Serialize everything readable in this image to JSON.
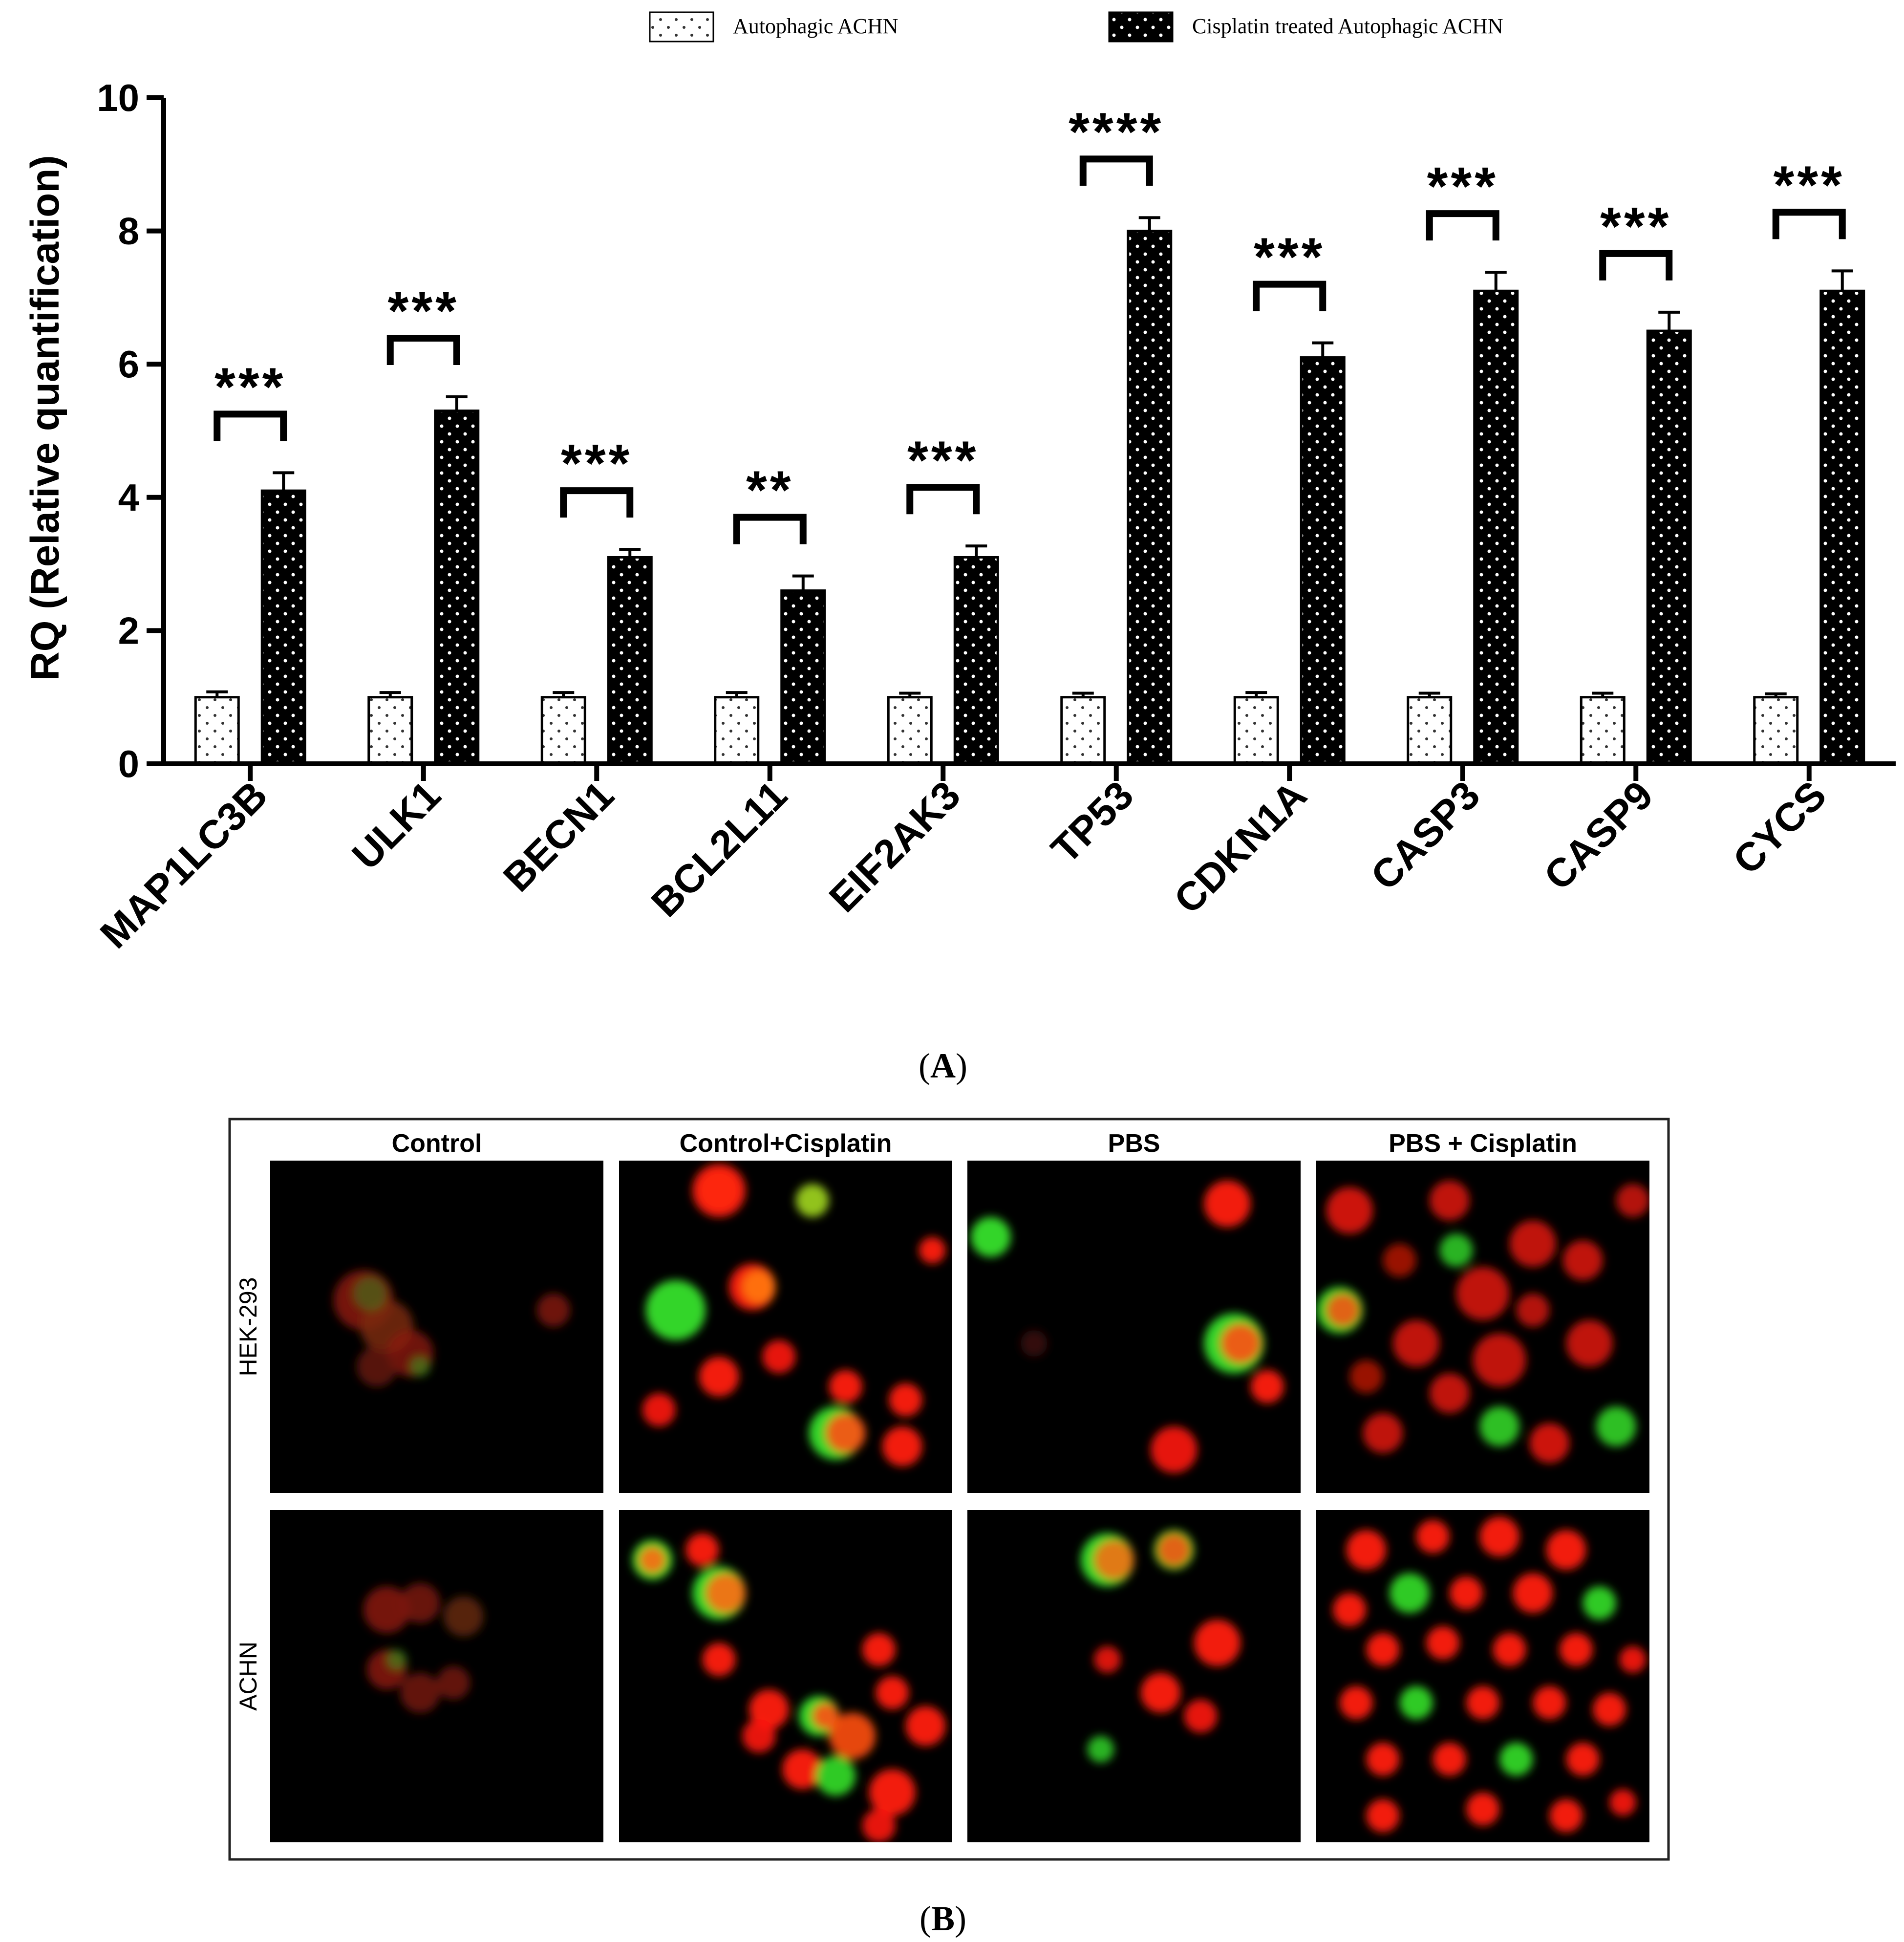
{
  "panel_a_caption_letter": "A",
  "panel_b_caption_letter": "B",
  "chart_data": {
    "type": "bar",
    "title": "",
    "xlabel": "",
    "ylabel": "RQ (Relative quantification)",
    "ylim": [
      0,
      10
    ],
    "yticks": [
      0,
      2,
      4,
      6,
      8,
      10
    ],
    "grid": false,
    "legend_position": "top",
    "categories": [
      "MAP1LC3B",
      "ULK1",
      "BECN1",
      "BCL2L11",
      "EIF2AK3",
      "TP53",
      "CDKN1A",
      "CASP3",
      "CASP9",
      "CYCS"
    ],
    "series": [
      {
        "name": "Autophagic ACHN",
        "values": [
          1.0,
          1.0,
          1.0,
          1.0,
          1.0,
          1.0,
          1.0,
          1.0,
          1.0,
          1.0
        ],
        "errors": [
          0.08,
          0.07,
          0.07,
          0.07,
          0.06,
          0.06,
          0.07,
          0.06,
          0.06,
          0.05
        ]
      },
      {
        "name": "Cisplatin treated Autophagic ACHN",
        "values": [
          4.1,
          5.3,
          3.1,
          2.6,
          3.1,
          8.0,
          6.1,
          7.1,
          6.5,
          7.1
        ],
        "errors": [
          0.27,
          0.21,
          0.12,
          0.22,
          0.17,
          0.2,
          0.22,
          0.28,
          0.28,
          0.3
        ]
      }
    ],
    "significance": [
      "***",
      "***",
      "***",
      "**",
      "***",
      "****",
      "***",
      "***",
      "***",
      "***"
    ]
  },
  "micrograph_panel": {
    "columns": [
      "Control",
      "Control+Cisplatin",
      "PBS",
      "PBS + Cisplatin"
    ],
    "rows": [
      "HEK-293",
      "ACHN"
    ],
    "colors": {
      "red": "#ff1a0a",
      "green": "#35e02a",
      "background": "#000000"
    },
    "cells": [
      [
        [
          [
            0.28,
            0.42,
            0.09,
            "#8a1810",
            0.85
          ],
          [
            0.35,
            0.5,
            0.08,
            "#7a2a10",
            0.85
          ],
          [
            0.42,
            0.58,
            0.07,
            "#8a1810",
            0.8
          ],
          [
            0.32,
            0.62,
            0.06,
            "#6a1a10",
            0.8
          ],
          [
            0.85,
            0.45,
            0.05,
            "#8a1810",
            0.8
          ],
          [
            0.3,
            0.4,
            0.05,
            "#3a8a20",
            0.5
          ],
          [
            0.45,
            0.62,
            0.03,
            "#3a9a20",
            0.6
          ]
        ],
        [
          [
            0.3,
            0.09,
            0.08,
            "#ff1a0a",
            0.95
          ],
          [
            0.3,
            0.09,
            0.06,
            "#ff2a10",
            0.85
          ],
          [
            0.58,
            0.12,
            0.05,
            "#9acd20",
            0.95
          ],
          [
            0.17,
            0.45,
            0.09,
            "#35e02a",
            0.95
          ],
          [
            0.4,
            0.38,
            0.07,
            "#ff1a0a",
            0.95
          ],
          [
            0.42,
            0.38,
            0.05,
            "#ff7a10",
            0.9
          ],
          [
            0.3,
            0.65,
            0.06,
            "#ff1a0a",
            0.95
          ],
          [
            0.48,
            0.59,
            0.05,
            "#ff1a0a",
            0.9
          ],
          [
            0.68,
            0.68,
            0.05,
            "#ff1a0a",
            0.95
          ],
          [
            0.86,
            0.72,
            0.05,
            "#ff1a0a",
            0.95
          ],
          [
            0.65,
            0.82,
            0.08,
            "#35e02a",
            0.95
          ],
          [
            0.68,
            0.82,
            0.06,
            "#ff5010",
            0.9
          ],
          [
            0.85,
            0.86,
            0.06,
            "#ff1a0a",
            0.95
          ],
          [
            0.94,
            0.27,
            0.04,
            "#ff1a0a",
            0.95
          ],
          [
            0.12,
            0.75,
            0.05,
            "#ff1a0a",
            0.9
          ]
        ],
        [
          [
            0.07,
            0.23,
            0.06,
            "#35e02a",
            0.95
          ],
          [
            0.78,
            0.13,
            0.07,
            "#ff1a0a",
            0.95
          ],
          [
            0.8,
            0.55,
            0.09,
            "#35e02a",
            0.95
          ],
          [
            0.82,
            0.55,
            0.06,
            "#ff5010",
            0.9
          ],
          [
            0.9,
            0.68,
            0.05,
            "#ff1a0a",
            0.95
          ],
          [
            0.62,
            0.87,
            0.07,
            "#ff1a0a",
            0.9
          ],
          [
            0.2,
            0.55,
            0.04,
            "#4a1010",
            0.7
          ]
        ],
        [
          [
            0.1,
            0.15,
            0.07,
            "#ff1a0a",
            0.8
          ],
          [
            0.4,
            0.12,
            0.06,
            "#ff1a0a",
            0.75
          ],
          [
            0.65,
            0.25,
            0.07,
            "#ff1a0a",
            0.75
          ],
          [
            0.5,
            0.4,
            0.08,
            "#ff1a0a",
            0.75
          ],
          [
            0.07,
            0.45,
            0.07,
            "#35e02a",
            0.9
          ],
          [
            0.08,
            0.45,
            0.05,
            "#ff5010",
            0.85
          ],
          [
            0.3,
            0.55,
            0.07,
            "#ff1a0a",
            0.75
          ],
          [
            0.55,
            0.6,
            0.08,
            "#ff1a0a",
            0.75
          ],
          [
            0.82,
            0.55,
            0.07,
            "#ff1a0a",
            0.75
          ],
          [
            0.2,
            0.82,
            0.06,
            "#ff1a0a",
            0.75
          ],
          [
            0.55,
            0.8,
            0.06,
            "#35e02a",
            0.85
          ],
          [
            0.9,
            0.8,
            0.06,
            "#35e02a",
            0.85
          ],
          [
            0.7,
            0.85,
            0.06,
            "#ff1a0a",
            0.8
          ],
          [
            0.4,
            0.7,
            0.06,
            "#ff1a0a",
            0.75
          ],
          [
            0.8,
            0.3,
            0.06,
            "#ff1a0a",
            0.75
          ],
          [
            0.42,
            0.27,
            0.05,
            "#35e02a",
            0.8
          ],
          [
            0.95,
            0.12,
            0.05,
            "#ff1a0a",
            0.7
          ],
          [
            0.25,
            0.3,
            0.05,
            "#ff1a0a",
            0.6
          ],
          [
            0.65,
            0.45,
            0.05,
            "#ff1a0a",
            0.7
          ],
          [
            0.15,
            0.65,
            0.05,
            "#ff1a0a",
            0.6
          ]
        ]
      ],
      [
        [
          [
            0.35,
            0.3,
            0.07,
            "#8a1810",
            0.85
          ],
          [
            0.45,
            0.28,
            0.06,
            "#7a1810",
            0.85
          ],
          [
            0.58,
            0.32,
            0.06,
            "#6a2a10",
            0.8
          ],
          [
            0.35,
            0.48,
            0.06,
            "#8a1810",
            0.85
          ],
          [
            0.45,
            0.55,
            0.06,
            "#7a1810",
            0.8
          ],
          [
            0.55,
            0.52,
            0.05,
            "#7a1810",
            0.8
          ],
          [
            0.38,
            0.45,
            0.03,
            "#3a9a20",
            0.6
          ]
        ],
        [
          [
            0.1,
            0.15,
            0.06,
            "#35e02a",
            0.95
          ],
          [
            0.1,
            0.15,
            0.04,
            "#ff6a10",
            0.9
          ],
          [
            0.25,
            0.12,
            0.05,
            "#ff1a0a",
            0.95
          ],
          [
            0.3,
            0.25,
            0.08,
            "#35e02a",
            0.95
          ],
          [
            0.32,
            0.25,
            0.06,
            "#ff6a10",
            0.9
          ],
          [
            0.3,
            0.45,
            0.05,
            "#ff1a0a",
            0.95
          ],
          [
            0.45,
            0.6,
            0.06,
            "#ff1a0a",
            0.95
          ],
          [
            0.6,
            0.62,
            0.06,
            "#35e02a",
            0.95
          ],
          [
            0.62,
            0.62,
            0.04,
            "#ff5010",
            0.9
          ],
          [
            0.7,
            0.68,
            0.07,
            "#ff5010",
            0.9
          ],
          [
            0.82,
            0.55,
            0.05,
            "#ff1a0a",
            0.95
          ],
          [
            0.92,
            0.65,
            0.06,
            "#ff1a0a",
            0.95
          ],
          [
            0.55,
            0.78,
            0.06,
            "#ff1a0a",
            0.95
          ],
          [
            0.65,
            0.8,
            0.06,
            "#35e02a",
            0.9
          ],
          [
            0.82,
            0.85,
            0.07,
            "#ff1a0a",
            0.95
          ],
          [
            0.78,
            0.42,
            0.05,
            "#ff1a0a",
            0.95
          ],
          [
            0.78,
            0.95,
            0.05,
            "#ff1a0a",
            0.9
          ],
          [
            0.42,
            0.68,
            0.05,
            "#ff1a0a",
            0.9
          ]
        ],
        [
          [
            0.42,
            0.15,
            0.08,
            "#35e02a",
            0.95
          ],
          [
            0.44,
            0.15,
            0.06,
            "#ff6a10",
            0.85
          ],
          [
            0.62,
            0.12,
            0.06,
            "#35e02a",
            0.9
          ],
          [
            0.62,
            0.12,
            0.05,
            "#ff5010",
            0.85
          ],
          [
            0.75,
            0.4,
            0.07,
            "#ff1a0a",
            0.95
          ],
          [
            0.58,
            0.55,
            0.06,
            "#ff1a0a",
            0.95
          ],
          [
            0.7,
            0.62,
            0.05,
            "#ff1a0a",
            0.9
          ],
          [
            0.42,
            0.45,
            0.04,
            "#ff1a0a",
            0.85
          ],
          [
            0.4,
            0.72,
            0.04,
            "#35e02a",
            0.8
          ]
        ],
        [
          [
            0.15,
            0.12,
            0.06,
            "#ff1a0a",
            0.95
          ],
          [
            0.35,
            0.08,
            0.05,
            "#ff1a0a",
            0.95
          ],
          [
            0.55,
            0.08,
            0.06,
            "#ff1a0a",
            0.95
          ],
          [
            0.75,
            0.12,
            0.06,
            "#ff1a0a",
            0.95
          ],
          [
            0.1,
            0.3,
            0.05,
            "#ff1a0a",
            0.95
          ],
          [
            0.28,
            0.25,
            0.06,
            "#35e02a",
            0.9
          ],
          [
            0.45,
            0.25,
            0.05,
            "#ff1a0a",
            0.95
          ],
          [
            0.65,
            0.25,
            0.06,
            "#ff1a0a",
            0.95
          ],
          [
            0.85,
            0.28,
            0.05,
            "#35e02a",
            0.9
          ],
          [
            0.2,
            0.42,
            0.05,
            "#ff1a0a",
            0.95
          ],
          [
            0.38,
            0.4,
            0.05,
            "#ff1a0a",
            0.95
          ],
          [
            0.58,
            0.42,
            0.05,
            "#ff1a0a",
            0.95
          ],
          [
            0.78,
            0.42,
            0.05,
            "#ff1a0a",
            0.95
          ],
          [
            0.95,
            0.45,
            0.04,
            "#ff1a0a",
            0.9
          ],
          [
            0.12,
            0.58,
            0.05,
            "#ff1a0a",
            0.95
          ],
          [
            0.3,
            0.58,
            0.05,
            "#35e02a",
            0.9
          ],
          [
            0.5,
            0.58,
            0.05,
            "#ff1a0a",
            0.95
          ],
          [
            0.7,
            0.58,
            0.05,
            "#ff1a0a",
            0.95
          ],
          [
            0.88,
            0.6,
            0.05,
            "#ff1a0a",
            0.95
          ],
          [
            0.2,
            0.75,
            0.05,
            "#ff1a0a",
            0.95
          ],
          [
            0.4,
            0.75,
            0.05,
            "#ff1a0a",
            0.95
          ],
          [
            0.6,
            0.75,
            0.05,
            "#35e02a",
            0.9
          ],
          [
            0.8,
            0.75,
            0.05,
            "#ff1a0a",
            0.95
          ],
          [
            0.2,
            0.92,
            0.05,
            "#ff1a0a",
            0.95
          ],
          [
            0.5,
            0.9,
            0.05,
            "#ff1a0a",
            0.95
          ],
          [
            0.75,
            0.92,
            0.05,
            "#ff1a0a",
            0.95
          ],
          [
            0.92,
            0.88,
            0.04,
            "#ff1a0a",
            0.9
          ]
        ]
      ]
    ]
  }
}
